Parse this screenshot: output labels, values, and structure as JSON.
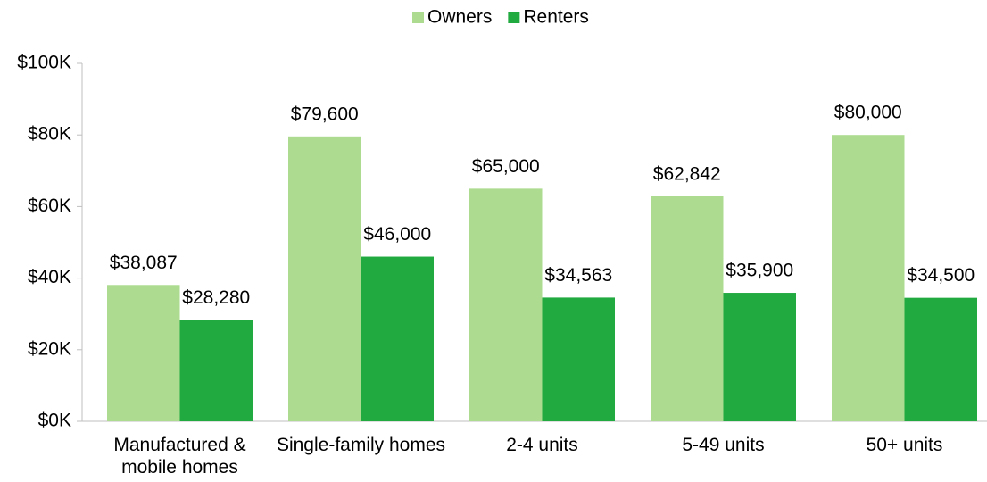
{
  "chart_data": {
    "type": "bar",
    "categories": [
      "Manufactured & mobile homes",
      "Single-family homes",
      "2-4 units",
      "5-49 units",
      "50+ units"
    ],
    "series": [
      {
        "name": "Owners",
        "color": "#addc91",
        "values": [
          38087,
          79600,
          65000,
          62842,
          80000
        ],
        "value_labels": [
          "$38,087",
          "$79,600",
          "$65,000",
          "$62,842",
          "$80,000"
        ]
      },
      {
        "name": "Renters",
        "color": "#21aa40",
        "values": [
          28280,
          46000,
          34563,
          35900,
          34500
        ],
        "value_labels": [
          "$28,280",
          "$46,000",
          "$34,563",
          "$35,900",
          "$34,500"
        ]
      }
    ],
    "ylim": [
      0,
      100000
    ],
    "yticks": [
      {
        "value": 0,
        "label": "$0K"
      },
      {
        "value": 20000,
        "label": "$20K"
      },
      {
        "value": 40000,
        "label": "$40K"
      },
      {
        "value": 60000,
        "label": "$60K"
      },
      {
        "value": 80000,
        "label": "$80K"
      },
      {
        "value": 100000,
        "label": "$100K"
      }
    ],
    "legend": "top"
  }
}
